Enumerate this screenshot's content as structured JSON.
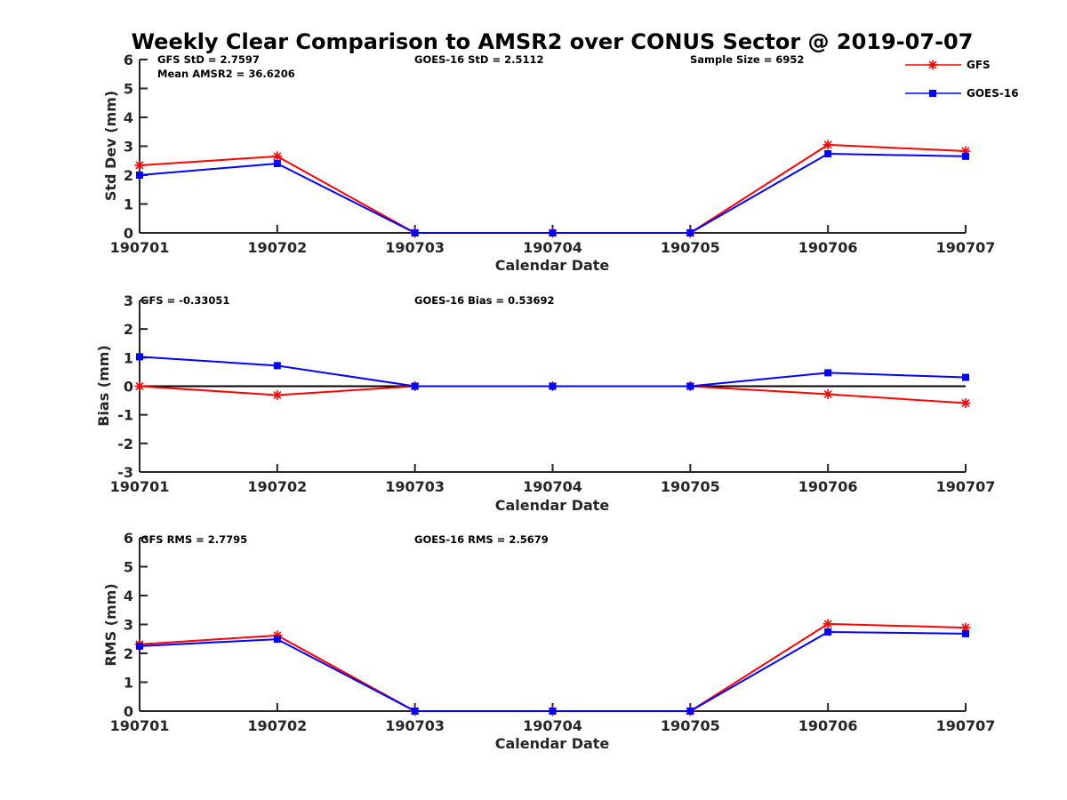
{
  "chart_data": {
    "title": "Weekly Clear Comparison to AMSR2 over CONUS Sector @ 2019-07-07",
    "legend": {
      "placement": "top-right",
      "entries": [
        {
          "name": "GFS",
          "color": "#ff0000",
          "marker": "asterisk"
        },
        {
          "name": "GOES-16",
          "color": "#0000ff",
          "marker": "square"
        }
      ]
    },
    "panels": [
      {
        "id": "stddev",
        "type": "line",
        "xlabel": "Calendar Date",
        "ylabel": "Std Dev (mm)",
        "ylim": [
          0,
          6
        ],
        "yticks": [
          0,
          1,
          2,
          3,
          4,
          5,
          6
        ],
        "categories": [
          "190701",
          "190702",
          "190703",
          "190704",
          "190705",
          "190706",
          "190707"
        ],
        "zero_line": false,
        "series": [
          {
            "name": "GFS",
            "color": "#ff0000",
            "marker": "asterisk",
            "values": [
              2.34,
              2.65,
              0,
              0,
              0,
              3.05,
              2.83
            ]
          },
          {
            "name": "GOES-16",
            "color": "#0000ff",
            "marker": "square",
            "values": [
              2.0,
              2.4,
              0,
              0,
              0,
              2.74,
              2.65
            ]
          }
        ],
        "annotations": [
          {
            "id": "gfs",
            "text": "GFS StD = 2.7597"
          },
          {
            "id": "mean",
            "text": "Mean AMSR2 = 36.6206"
          },
          {
            "id": "goes",
            "text": "GOES-16 StD = 2.5112"
          },
          {
            "id": "sample",
            "text": "Sample Size = 6952"
          }
        ]
      },
      {
        "id": "bias",
        "type": "line",
        "xlabel": "Calendar Date",
        "ylabel": "Bias (mm)",
        "ylim": [
          -3,
          3
        ],
        "yticks": [
          -3,
          -2,
          -1,
          0,
          1,
          2,
          3
        ],
        "categories": [
          "190701",
          "190702",
          "190703",
          "190704",
          "190705",
          "190706",
          "190707"
        ],
        "zero_line": true,
        "series": [
          {
            "name": "GFS",
            "color": "#ff0000",
            "marker": "asterisk",
            "values": [
              0,
              -0.31,
              0,
              0,
              0,
              -0.28,
              -0.59
            ]
          },
          {
            "name": "GOES-16",
            "color": "#0000ff",
            "marker": "square",
            "values": [
              1.03,
              0.72,
              0,
              0,
              0,
              0.47,
              0.31
            ]
          }
        ],
        "annotations": [
          {
            "id": "gfs",
            "text": "GFS = -0.33051"
          },
          {
            "id": "goes",
            "text": "GOES-16 Bias  = 0.53692"
          }
        ]
      },
      {
        "id": "rms",
        "type": "line",
        "xlabel": "Calendar Date",
        "ylabel": "RMS (mm)",
        "ylim": [
          0,
          6
        ],
        "yticks": [
          0,
          1,
          2,
          3,
          4,
          5,
          6
        ],
        "categories": [
          "190701",
          "190702",
          "190703",
          "190704",
          "190705",
          "190706",
          "190707"
        ],
        "zero_line": false,
        "series": [
          {
            "name": "GFS",
            "color": "#ff0000",
            "marker": "asterisk",
            "values": [
              2.31,
              2.62,
              0,
              0,
              0,
              3.02,
              2.89
            ]
          },
          {
            "name": "GOES-16",
            "color": "#0000ff",
            "marker": "square",
            "values": [
              2.25,
              2.49,
              0,
              0,
              0,
              2.74,
              2.68
            ]
          }
        ],
        "annotations": [
          {
            "id": "gfs",
            "text": "GFS RMS = 2.7795"
          },
          {
            "id": "goes",
            "text": "GOES-16 RMS = 2.5679"
          }
        ]
      }
    ]
  }
}
